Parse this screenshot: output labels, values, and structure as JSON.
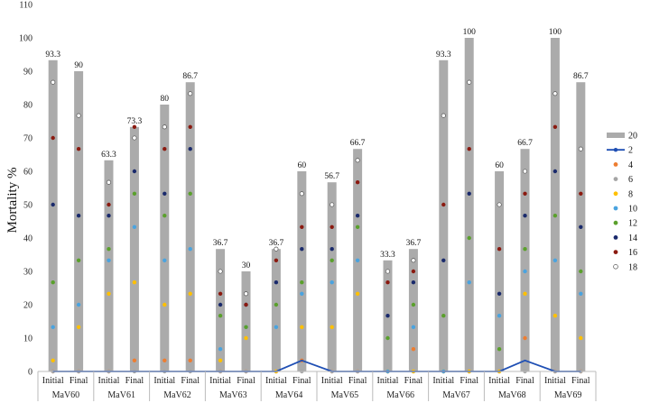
{
  "chart_data": {
    "type": "bar",
    "title": "",
    "xlabel": "",
    "ylabel": "Mortality %",
    "ylim": [
      0,
      110
    ],
    "yticks": [
      0,
      10,
      20,
      30,
      40,
      50,
      60,
      70,
      80,
      90,
      100,
      110
    ],
    "grid": false,
    "legend_position": "right",
    "groups": [
      "MaV60",
      "MaV61",
      "MaV62",
      "MaV63",
      "MaV64",
      "MaV65",
      "MaV66",
      "MaV67",
      "MaV68",
      "MaV69"
    ],
    "subcategories": [
      "Initial",
      "Final"
    ],
    "categories": [
      "MaV60 Initial",
      "MaV60 Final",
      "MaV61 Initial",
      "MaV61 Final",
      "MaV62 Initial",
      "MaV62 Final",
      "MaV63 Initial",
      "MaV63 Final",
      "MaV64 Initial",
      "MaV64 Final",
      "MaV65 Initial",
      "MaV65 Final",
      "MaV66 Initial",
      "MaV66 Final",
      "MaV67 Initial",
      "MaV67 Final",
      "MaV68 Initial",
      "MaV68 Final",
      "MaV69 Initial",
      "MaV69 Final"
    ],
    "series": [
      {
        "name": "20",
        "kind": "bar",
        "color": "#ababab",
        "values": [
          93.3,
          90,
          63.3,
          73.3,
          80,
          86.7,
          36.7,
          30,
          36.7,
          60,
          56.7,
          66.7,
          33.3,
          36.7,
          93.3,
          100,
          60,
          66.7,
          100,
          86.7
        ],
        "labels": [
          "93.3",
          "90",
          "63.3",
          "73.3",
          "80",
          "86.7",
          "36.7",
          "30",
          "36.7",
          "60",
          "56.7",
          "66.7",
          "33.3",
          "36.7",
          "93.3",
          "100",
          "60",
          "66.7",
          "100",
          "86.7"
        ]
      },
      {
        "name": "2",
        "kind": "line",
        "color": "#1f4fb4",
        "values": [
          0,
          0,
          0,
          0,
          0,
          0,
          0,
          0,
          0,
          3.3,
          0,
          0,
          0,
          0,
          0,
          0,
          0,
          3.3,
          0,
          0
        ]
      },
      {
        "name": "4",
        "kind": "point",
        "color": "#ed7d31",
        "values": [
          0,
          0,
          0,
          3.3,
          3.3,
          3.3,
          0,
          0,
          0,
          3.3,
          0,
          0,
          0,
          6.7,
          0,
          0,
          0,
          10,
          0,
          0
        ]
      },
      {
        "name": "6",
        "kind": "point",
        "color": "#a5a5a5",
        "values": [
          0,
          0,
          0,
          0,
          0,
          0,
          0,
          0,
          0,
          0,
          0,
          0,
          0,
          0,
          0,
          0,
          0,
          0,
          0,
          0
        ]
      },
      {
        "name": "8",
        "kind": "point",
        "color": "#ffc000",
        "values": [
          3.3,
          13.3,
          23.3,
          26.7,
          20,
          23.3,
          3.3,
          10,
          0,
          13.3,
          13.3,
          23.3,
          0,
          0,
          0,
          0,
          0,
          23.3,
          16.7,
          10
        ]
      },
      {
        "name": "10",
        "kind": "point",
        "color": "#4aa3df",
        "values": [
          13.3,
          20,
          33.3,
          43.3,
          33.3,
          36.7,
          6.7,
          13.3,
          13.3,
          23.3,
          26.7,
          33.3,
          0,
          13.3,
          0,
          26.7,
          16.7,
          30,
          33.3,
          23.3
        ]
      },
      {
        "name": "12",
        "kind": "point",
        "color": "#5aa02c",
        "values": [
          26.7,
          33.3,
          36.7,
          53.3,
          46.7,
          53.3,
          16.7,
          13.3,
          20,
          26.7,
          33.3,
          43.3,
          10,
          20,
          16.7,
          40,
          6.7,
          36.7,
          46.7,
          30
        ]
      },
      {
        "name": "14",
        "kind": "point",
        "color": "#1a2a6c",
        "values": [
          50,
          46.7,
          46.7,
          60,
          53.3,
          66.7,
          20,
          20,
          26.7,
          36.7,
          36.7,
          46.7,
          16.7,
          26.7,
          33.3,
          53.3,
          23.3,
          46.7,
          60,
          43.3
        ]
      },
      {
        "name": "16",
        "kind": "point",
        "color": "#8b1a10",
        "values": [
          70,
          66.7,
          50,
          73.3,
          66.7,
          73.3,
          23.3,
          20,
          33.3,
          43.3,
          43.3,
          56.7,
          26.7,
          30,
          50,
          66.7,
          36.7,
          53.3,
          73.3,
          53.3
        ]
      },
      {
        "name": "18",
        "kind": "point",
        "color": "#ffffff",
        "values": [
          86.7,
          76.7,
          56.7,
          70,
          73.3,
          83.3,
          30,
          23.3,
          36.7,
          53.3,
          50,
          63.3,
          30,
          33.3,
          76.7,
          86.7,
          50,
          60,
          83.3,
          66.7
        ]
      }
    ]
  }
}
